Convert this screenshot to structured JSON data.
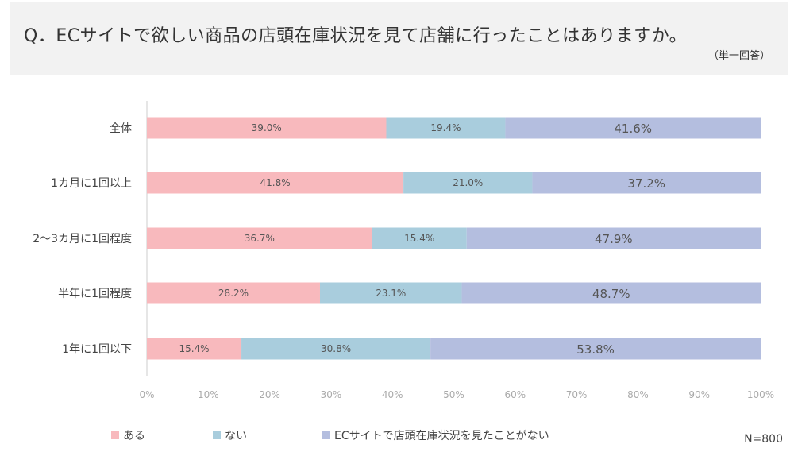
{
  "header": {
    "title": "Q．ECサイトで欲しい商品の店頭在庫状況を見て店舗に行ったことはありますか。",
    "note": "（単一回答）"
  },
  "sample_size": "N=800",
  "chart_data": {
    "type": "bar",
    "orientation": "horizontal",
    "stacked": true,
    "categories": [
      "全体",
      "1カ月に1回以上",
      "2～3カ月に1回程度",
      "半年に1回程度",
      "1年に1回以下"
    ],
    "series": [
      {
        "name": "ある",
        "color": "#f8b9bd",
        "values": [
          39.0,
          41.8,
          36.7,
          28.2,
          15.4
        ]
      },
      {
        "name": "ない",
        "color": "#a9cddd",
        "values": [
          19.4,
          21.0,
          15.4,
          23.1,
          30.8
        ]
      },
      {
        "name": "ECサイトで店頭在庫状況を見たことがない",
        "color": "#b4bedf",
        "values": [
          41.6,
          37.2,
          47.9,
          48.7,
          53.8
        ]
      }
    ],
    "xlim": [
      0,
      100
    ],
    "xticks": [
      "0%",
      "10%",
      "20%",
      "30%",
      "40%",
      "50%",
      "60%",
      "70%",
      "80%",
      "90%",
      "100%"
    ],
    "legend": "bottom"
  }
}
